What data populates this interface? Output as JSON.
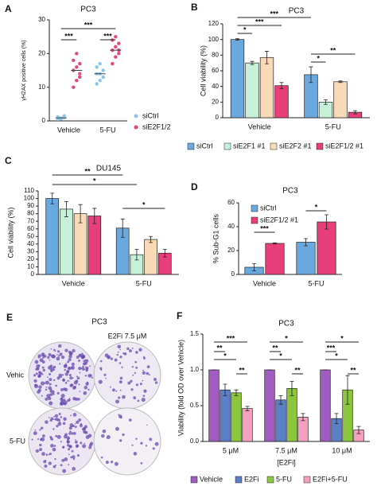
{
  "chart_data": [
    {
      "panel": "A",
      "type": "strip",
      "title": "PC3",
      "ylabel": "γH2AX positive cells (%)",
      "categories": [
        "Vehicle",
        "5-FU"
      ],
      "ylim": [
        0,
        30
      ],
      "yticks": [
        0,
        10,
        20,
        30
      ],
      "legend": "right",
      "series": [
        {
          "name": "siCtrl",
          "color": "#8ec3e8",
          "values": [
            [
              0.5,
              0.8,
              1.0,
              1.2,
              0.7,
              1.5,
              0.9,
              0.6,
              1.1
            ],
            [
              11,
              12,
              13,
              14,
              14,
              15,
              16,
              17,
              13
            ]
          ],
          "medians": [
            0.9,
            14
          ]
        },
        {
          "name": "siE2F1/2",
          "color": "#e8457a",
          "values": [
            [
              10,
              12,
              14,
              15,
              16,
              17,
              18,
              20,
              13
            ],
            [
              17,
              19,
              20,
              21,
              22,
              23,
              24,
              25,
              21
            ]
          ],
          "medians": [
            15,
            21
          ]
        }
      ],
      "annotations": [
        "***",
        "***",
        "***"
      ]
    },
    {
      "panel": "B",
      "type": "bar",
      "title": "PC3",
      "ylabel": "Cell viability (%)",
      "categories": [
        "Vehicle",
        "5-FU"
      ],
      "ylim": [
        0,
        120
      ],
      "yticks": [
        0,
        20,
        40,
        60,
        80,
        100,
        120
      ],
      "legend": "bottom",
      "series": [
        {
          "name": "siCtrl",
          "color": "#6aa8e0",
          "values": [
            100,
            55
          ],
          "errors": [
            1,
            10
          ]
        },
        {
          "name": "siE2F1 #1",
          "color": "#c8f0d8",
          "values": [
            70,
            20
          ],
          "errors": [
            2,
            3
          ]
        },
        {
          "name": "siE2F2 #1",
          "color": "#f8d9b8",
          "values": [
            77,
            46
          ],
          "errors": [
            8,
            1
          ]
        },
        {
          "name": "siE2F1/2 #1",
          "color": "#e83e7a",
          "values": [
            41,
            7
          ],
          "errors": [
            4,
            2
          ]
        }
      ],
      "annotations": [
        "***",
        "***",
        "*",
        "**",
        "*"
      ]
    },
    {
      "panel": "C",
      "type": "bar",
      "title": "DU145",
      "ylabel": "Cell viability (%)",
      "categories": [
        "Vehicle",
        "5-FU"
      ],
      "ylim": [
        0,
        110
      ],
      "yticks": [
        0,
        10,
        20,
        30,
        40,
        50,
        60,
        70,
        80,
        90,
        100,
        110
      ],
      "series": [
        {
          "color": "#6aa8e0",
          "values": [
            100,
            61
          ],
          "errors": [
            7,
            12
          ]
        },
        {
          "color": "#c8f0d8",
          "values": [
            86,
            26
          ],
          "errors": [
            10,
            7
          ]
        },
        {
          "color": "#f8d9b8",
          "values": [
            80,
            46
          ],
          "errors": [
            12,
            4
          ]
        },
        {
          "color": "#e83e7a",
          "values": [
            77,
            28
          ],
          "errors": [
            10,
            5
          ]
        }
      ],
      "annotations": [
        "**",
        "*",
        "*"
      ]
    },
    {
      "panel": "D",
      "type": "bar",
      "title": "PC3",
      "ylabel": "% Sub-G1 cells",
      "categories": [
        "Vehicle",
        "5-FU"
      ],
      "ylim": [
        0,
        60
      ],
      "yticks": [
        0,
        20,
        40,
        60
      ],
      "legend": "top-left",
      "series": [
        {
          "name": "siCtrl",
          "color": "#6aa8e0",
          "values": [
            6,
            27
          ],
          "errors": [
            3,
            3
          ]
        },
        {
          "name": "siE2F1/2 #1",
          "color": "#e83e7a",
          "values": [
            26,
            44
          ],
          "errors": [
            0.5,
            6
          ]
        }
      ],
      "annotations": [
        "***",
        "*"
      ]
    },
    {
      "panel": "F",
      "type": "bar",
      "title": "PC3",
      "ylabel": "Viability (fold OD over Vehicle)",
      "xlabel": "[E2Fi]",
      "categories": [
        "5 μM",
        "7.5 μM",
        "10 μM"
      ],
      "ylim": [
        0,
        1.5
      ],
      "yticks": [
        {
          "value": 0,
          "label": "0.0"
        },
        {
          "value": 0.5,
          "label": "0.5"
        },
        {
          "value": 1,
          "label": "1.0"
        },
        {
          "value": 1.5,
          "label": "1.5"
        }
      ],
      "legend": "bottom",
      "series": [
        {
          "name": "Vehicle",
          "color": "#a05cc0",
          "values": [
            1.0,
            1.0,
            1.0
          ],
          "errors": [
            0,
            0,
            0
          ]
        },
        {
          "name": "E2Fi",
          "color": "#5b80c8",
          "values": [
            0.72,
            0.58,
            0.32
          ],
          "errors": [
            0.08,
            0.06,
            0.07
          ]
        },
        {
          "name": "5-FU",
          "color": "#8cc63e",
          "values": [
            0.68,
            0.74,
            0.72
          ],
          "errors": [
            0.04,
            0.1,
            0.2
          ]
        },
        {
          "name": "E2Fi+5-FU",
          "color": "#f6a0c0",
          "values": [
            0.46,
            0.34,
            0.16
          ],
          "errors": [
            0.03,
            0.05,
            0.05
          ]
        }
      ],
      "annotations": [
        "***",
        "**",
        "*",
        "**",
        "*",
        "**",
        "*",
        "**",
        "*",
        "***",
        "*",
        "**"
      ]
    }
  ],
  "image_panel": {
    "panel": "E",
    "title": "PC3",
    "column_label": "E2Fi 7.5 μM",
    "row_labels": [
      "Vehic",
      "5-FU"
    ]
  }
}
